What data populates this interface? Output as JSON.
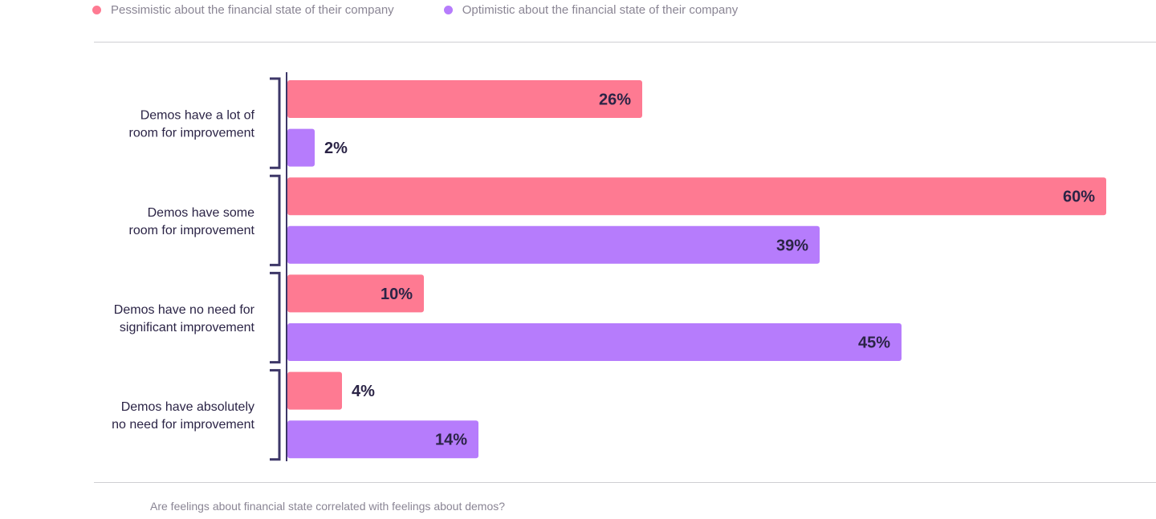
{
  "legend": {
    "items": [
      {
        "label": "Pessimistic about the financial state of their company",
        "color": "#fe7a92"
      },
      {
        "label": "Optimistic about the financial state of their company",
        "color": "#b67cfc"
      }
    ]
  },
  "caption": "Are feelings about financial state correlated with feelings about demos?",
  "chart_data": {
    "type": "bar",
    "orientation": "horizontal",
    "categories": [
      [
        "Demos have a lot of",
        "room for improvement"
      ],
      [
        "Demos have some",
        "room for improvement"
      ],
      [
        "Demos have no need for",
        "significant improvement"
      ],
      [
        "Demos have absolutely",
        "no need for improvement"
      ]
    ],
    "series": [
      {
        "name": "Pessimistic about the financial state of their company",
        "color": "#fe7a92",
        "values": [
          26,
          60,
          10,
          4
        ],
        "labels": [
          "26%",
          "60%",
          "10%",
          "4%"
        ]
      },
      {
        "name": "Optimistic about the financial state of their company",
        "color": "#b67cfc",
        "values": [
          2,
          39,
          45,
          14
        ],
        "labels": [
          "2%",
          "39%",
          "45%",
          "14%"
        ]
      }
    ],
    "xlim": [
      0,
      60
    ],
    "unit": "%",
    "grid": false,
    "legend_position": "top-left"
  }
}
